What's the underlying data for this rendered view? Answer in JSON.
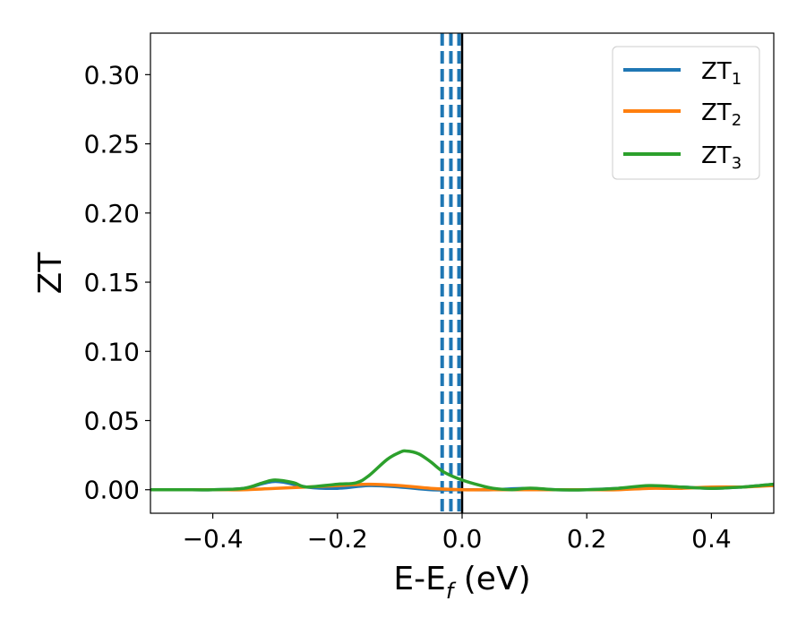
{
  "chart_data": {
    "type": "line",
    "title": "",
    "xlabel": "E-E",
    "xlabel_sub": "f",
    "xlabel_unit": " (eV)",
    "ylabel": "ZT",
    "xlim": [
      -0.5,
      0.5
    ],
    "ylim": [
      -0.017,
      0.33
    ],
    "xticks": [
      -0.4,
      -0.2,
      0.0,
      0.2,
      0.4
    ],
    "xtick_labels": [
      "−0.4",
      "−0.2",
      "0.0",
      "0.2",
      "0.4"
    ],
    "yticks": [
      0.0,
      0.05,
      0.1,
      0.15,
      0.2,
      0.25,
      0.3
    ],
    "ytick_labels": [
      "0.00",
      "0.05",
      "0.10",
      "0.15",
      "0.20",
      "0.25",
      "0.30"
    ],
    "grid": false,
    "legend_position": "top-right",
    "series": [
      {
        "name": "ZT",
        "name_sub": "1",
        "color": "#1f77b4",
        "x": [
          -0.5,
          -0.45,
          -0.4,
          -0.35,
          -0.3,
          -0.25,
          -0.2,
          -0.15,
          -0.1,
          -0.05,
          0.0,
          0.05,
          0.1,
          0.15,
          0.2,
          0.25,
          0.3,
          0.35,
          0.4,
          0.45,
          0.5
        ],
        "y": [
          0.0,
          0.0,
          0.0,
          0.001,
          0.006,
          0.002,
          0.001,
          0.003,
          0.002,
          0.0,
          0.0,
          0.0,
          0.001,
          0.0,
          0.0,
          0.001,
          0.002,
          0.002,
          0.001,
          0.002,
          0.004
        ]
      },
      {
        "name": "ZT",
        "name_sub": "2",
        "color": "#ff7f0e",
        "x": [
          -0.5,
          -0.45,
          -0.4,
          -0.35,
          -0.3,
          -0.25,
          -0.2,
          -0.15,
          -0.1,
          -0.05,
          0.0,
          0.05,
          0.1,
          0.15,
          0.2,
          0.25,
          0.3,
          0.35,
          0.4,
          0.45,
          0.5
        ],
        "y": [
          0.0,
          0.0,
          0.0,
          0.0,
          0.001,
          0.002,
          0.003,
          0.004,
          0.003,
          0.001,
          0.0,
          0.0,
          0.0,
          0.0,
          0.0,
          0.0,
          0.001,
          0.001,
          0.002,
          0.002,
          0.003
        ]
      },
      {
        "name": "ZT",
        "name_sub": "3",
        "color": "#2ca02c",
        "x": [
          -0.5,
          -0.45,
          -0.4,
          -0.35,
          -0.32,
          -0.3,
          -0.27,
          -0.25,
          -0.2,
          -0.17,
          -0.15,
          -0.12,
          -0.1,
          -0.09,
          -0.07,
          -0.05,
          -0.03,
          0.0,
          0.03,
          0.05,
          0.08,
          0.1,
          0.12,
          0.15,
          0.2,
          0.25,
          0.3,
          0.35,
          0.4,
          0.45,
          0.5
        ],
        "y": [
          0.0,
          0.0,
          0.0,
          0.001,
          0.005,
          0.007,
          0.005,
          0.002,
          0.004,
          0.005,
          0.01,
          0.022,
          0.027,
          0.028,
          0.026,
          0.02,
          0.013,
          0.007,
          0.003,
          0.001,
          0.0,
          0.001,
          0.001,
          0.0,
          0.0,
          0.001,
          0.003,
          0.002,
          0.001,
          0.002,
          0.004
        ]
      }
    ],
    "vlines": [
      {
        "x": -0.032,
        "color": "#1f77b4",
        "style": "dashed"
      },
      {
        "x": -0.018,
        "color": "#1f77b4",
        "style": "dashed"
      },
      {
        "x": -0.005,
        "color": "#1f77b4",
        "style": "dashed"
      },
      {
        "x": 0.0,
        "color": "#000000",
        "style": "solid"
      }
    ]
  }
}
